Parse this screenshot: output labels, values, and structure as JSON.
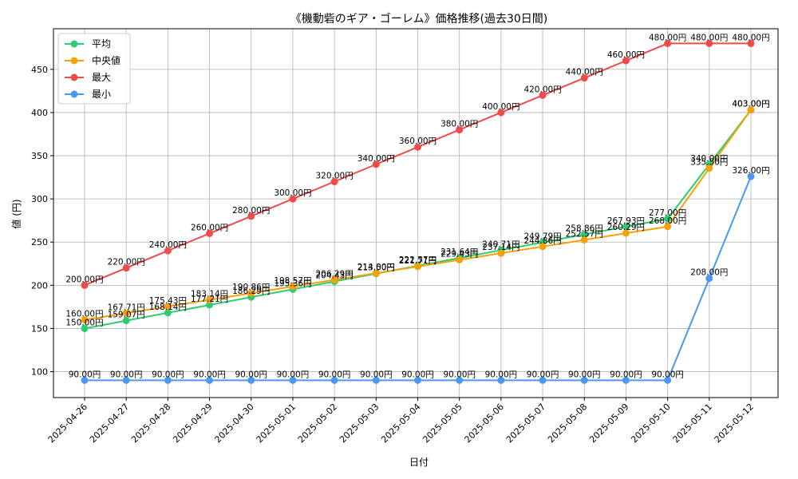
{
  "chart_data": {
    "type": "line",
    "title": "《機動砦のギア・ゴーレム》価格推移(過去30日間)",
    "xlabel": "日付",
    "ylabel": "値 (円)",
    "ylim": [
      70,
      497
    ],
    "yticks": [
      100,
      150,
      200,
      250,
      300,
      350,
      400,
      450
    ],
    "grid": true,
    "legend": "top-left",
    "value_suffix": "円",
    "categories": [
      "2025-04-26",
      "2025-04-27",
      "2025-04-28",
      "2025-04-29",
      "2025-04-30",
      "2025-05-01",
      "2025-05-02",
      "2025-05-03",
      "2025-05-04",
      "2025-05-05",
      "2025-05-06",
      "2025-05-07",
      "2025-05-08",
      "2025-05-09",
      "2025-05-10",
      "2025-05-11",
      "2025-05-12"
    ],
    "series": [
      {
        "name": "平均",
        "color": "#2ecc71",
        "values": [
          150.0,
          159.07,
          168.14,
          177.21,
          186.29,
          195.36,
          204.43,
          213.5,
          222.57,
          231.64,
          240.71,
          249.79,
          258.86,
          267.93,
          277.0,
          340.0,
          403.0
        ]
      },
      {
        "name": "中央値",
        "color": "#f5a20a",
        "values": [
          160.0,
          167.71,
          175.43,
          183.14,
          190.86,
          198.57,
          206.29,
          214.0,
          221.71,
          229.43,
          237.14,
          244.86,
          252.57,
          260.29,
          268.0,
          335.5,
          403.0
        ]
      },
      {
        "name": "最大",
        "color": "#ef4b4b",
        "values": [
          200.0,
          220.0,
          240.0,
          260.0,
          280.0,
          300.0,
          320.0,
          340.0,
          360.0,
          380.0,
          400.0,
          420.0,
          440.0,
          460.0,
          480.0,
          480.0,
          480.0
        ]
      },
      {
        "name": "最小",
        "color": "#4a98f0",
        "values": [
          90.0,
          90.0,
          90.0,
          90.0,
          90.0,
          90.0,
          90.0,
          90.0,
          90.0,
          90.0,
          90.0,
          90.0,
          90.0,
          90.0,
          90.0,
          208.0,
          326.0
        ]
      }
    ]
  }
}
